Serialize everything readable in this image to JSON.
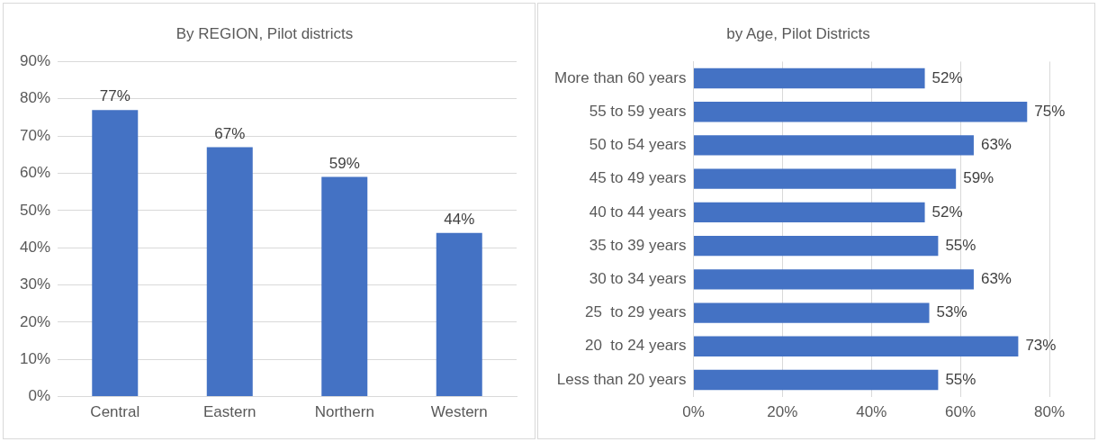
{
  "chart_data": [
    {
      "type": "bar",
      "title": "By REGION, Pilot districts",
      "categories": [
        "Central",
        "Eastern",
        "Northern",
        "Western"
      ],
      "values": [
        77,
        67,
        59,
        44
      ],
      "color": "#4472c4",
      "value_labels": [
        "77%",
        "67%",
        "59%",
        "44%"
      ],
      "ylim": [
        0,
        90
      ],
      "yticks": [
        {
          "value": 0,
          "label": "0%"
        },
        {
          "value": 10,
          "label": "10%"
        },
        {
          "value": 20,
          "label": "20%"
        },
        {
          "value": 30,
          "label": "30%"
        },
        {
          "value": 40,
          "label": "40%"
        },
        {
          "value": 50,
          "label": "50%"
        },
        {
          "value": 60,
          "label": "60%"
        },
        {
          "value": 70,
          "label": "70%"
        },
        {
          "value": 80,
          "label": "80%"
        },
        {
          "value": 90,
          "label": "90%"
        }
      ],
      "grid": "y",
      "legend": false
    },
    {
      "type": "bar",
      "orientation": "horizontal",
      "title": "by Age, Pilot Districts",
      "categories": [
        "More than 60 years",
        "55 to 59 years",
        "50 to 54 years",
        "45 to 49 years",
        "40 to 44 years",
        "35 to 39 years",
        "30 to 34 years",
        "25  to 29 years",
        "20  to 24 years",
        "Less than 20 years"
      ],
      "values": [
        52,
        75,
        63,
        59,
        52,
        55,
        63,
        53,
        73,
        55
      ],
      "color": "#4472c4",
      "value_labels": [
        "52%",
        "75%",
        "63%",
        "59%",
        "52%",
        "55%",
        "63%",
        "53%",
        "73%",
        "55%"
      ],
      "xlim": [
        0,
        80
      ],
      "xticks": [
        {
          "value": 0,
          "label": "0%"
        },
        {
          "value": 20,
          "label": "20%"
        },
        {
          "value": 40,
          "label": "40%"
        },
        {
          "value": 60,
          "label": "60%"
        },
        {
          "value": 80,
          "label": "80%"
        }
      ],
      "grid": "x",
      "legend": false
    }
  ]
}
